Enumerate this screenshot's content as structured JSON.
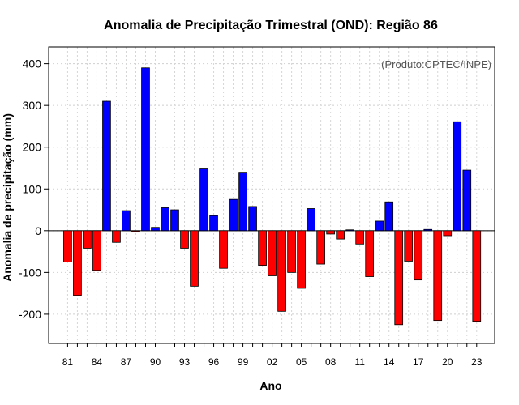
{
  "chart_data": {
    "type": "bar",
    "title": "Anomalia de Precipitação Trimestral (OND): Região 86",
    "xlabel": "Ano",
    "ylabel": "Anomalia de precipitação (mm)",
    "annotation": "(Produto:CPTEC/INPE)",
    "ylim": [
      -270,
      440
    ],
    "yticks": [
      -200,
      -100,
      0,
      100,
      200,
      300,
      400
    ],
    "grid": true,
    "positive_color": "#0000ff",
    "negative_color": "#ff0000",
    "categories": [
      "1981",
      "1982",
      "1983",
      "1984",
      "1985",
      "1986",
      "1987",
      "1988",
      "1989",
      "1990",
      "1991",
      "1992",
      "1993",
      "1994",
      "1995",
      "1996",
      "1997",
      "1998",
      "1999",
      "2000",
      "2001",
      "2002",
      "2003",
      "2004",
      "2005",
      "2006",
      "2007",
      "2008",
      "2009",
      "2010",
      "2011",
      "2012",
      "2013",
      "2014",
      "2015",
      "2016",
      "2017",
      "2018",
      "2019",
      "2020",
      "2021",
      "2022",
      "2023"
    ],
    "values": [
      -75,
      -155,
      -42,
      -95,
      310,
      -28,
      48,
      -2,
      390,
      8,
      55,
      50,
      -42,
      -133,
      148,
      36,
      -90,
      75,
      140,
      58,
      -83,
      -108,
      -193,
      -100,
      -138,
      53,
      -80,
      -8,
      -20,
      2,
      -32,
      -110,
      23,
      69,
      -225,
      -73,
      -118,
      3,
      -215,
      -12,
      261,
      145,
      -217
    ],
    "xtick_labels": [
      {
        "index": 0,
        "label": "81"
      },
      {
        "index": 3,
        "label": "84"
      },
      {
        "index": 6,
        "label": "87"
      },
      {
        "index": 9,
        "label": "90"
      },
      {
        "index": 12,
        "label": "93"
      },
      {
        "index": 15,
        "label": "96"
      },
      {
        "index": 18,
        "label": "99"
      },
      {
        "index": 21,
        "label": "02"
      },
      {
        "index": 24,
        "label": "05"
      },
      {
        "index": 27,
        "label": "08"
      },
      {
        "index": 30,
        "label": "11"
      },
      {
        "index": 33,
        "label": "14"
      },
      {
        "index": 36,
        "label": "17"
      },
      {
        "index": 39,
        "label": "20"
      },
      {
        "index": 42,
        "label": "23"
      }
    ]
  }
}
